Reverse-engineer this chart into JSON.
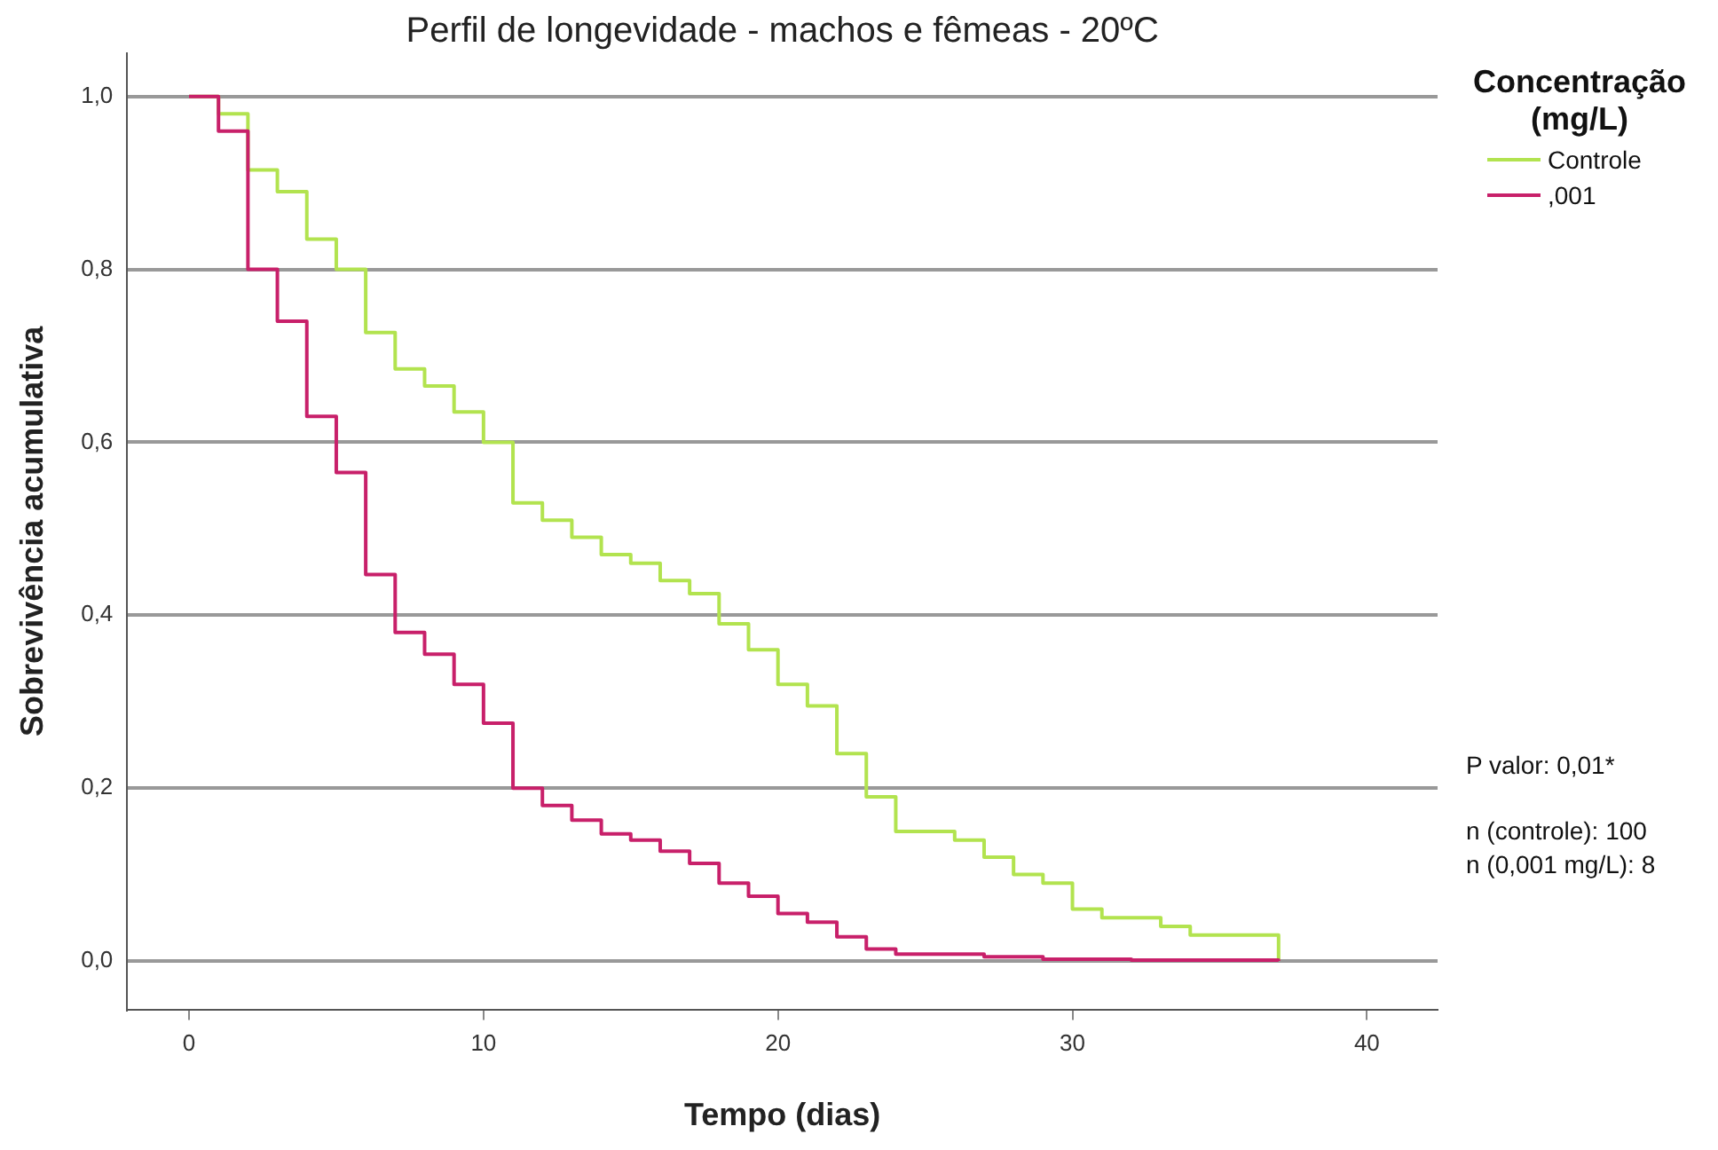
{
  "chart_data": {
    "type": "step",
    "title": "Perfil de longevidade - machos e fêmeas - 20ºC",
    "xlabel": "Tempo (dias)",
    "ylabel": "Sobrevivência acumulativa",
    "legend_title": "Concentração (mg/L)",
    "legend": "top right",
    "xlim": [
      -2.1,
      42.4
    ],
    "xticks": [
      0,
      10,
      20,
      30,
      40
    ],
    "ylim": [
      -0.056,
      1.05
    ],
    "yticks": [
      {
        "value": 0,
        "label": "0,0"
      },
      {
        "value": 0.2,
        "label": "0,2"
      },
      {
        "value": 0.4,
        "label": "0,4"
      },
      {
        "value": 0.6,
        "label": "0,6"
      },
      {
        "value": 0.8,
        "label": "0,8"
      },
      {
        "value": 1,
        "label": "1,0"
      }
    ],
    "grid": "y",
    "series": [
      {
        "name": "Controle",
        "color": "#b2e34f",
        "x": [
          0,
          1,
          2,
          3,
          4,
          5,
          6,
          7,
          8,
          9,
          10,
          11,
          12,
          13,
          14,
          15,
          16,
          17,
          18,
          19,
          20,
          21,
          22,
          23,
          24,
          26,
          27,
          28,
          29,
          30,
          31,
          33,
          34,
          37
        ],
        "values": [
          1,
          0.98,
          0.915,
          0.89,
          0.835,
          0.8,
          0.727,
          0.685,
          0.665,
          0.635,
          0.6,
          0.53,
          0.51,
          0.49,
          0.47,
          0.46,
          0.44,
          0.425,
          0.39,
          0.36,
          0.32,
          0.295,
          0.24,
          0.19,
          0.15,
          0.14,
          0.12,
          0.1,
          0.09,
          0.06,
          0.05,
          0.04,
          0.03,
          0
        ]
      },
      {
        "name": ",001",
        "color": "#c8206a",
        "x": [
          0,
          1,
          2,
          3,
          4,
          5,
          6,
          7,
          8,
          9,
          10,
          11,
          12,
          13,
          14,
          15,
          16,
          17,
          18,
          19,
          20,
          21,
          22,
          23,
          24,
          27,
          29,
          32,
          37
        ],
        "values": [
          1,
          0.96,
          0.8,
          0.74,
          0.63,
          0.565,
          0.447,
          0.38,
          0.355,
          0.32,
          0.275,
          0.2,
          0.18,
          0.163,
          0.147,
          0.14,
          0.127,
          0.113,
          0.09,
          0.075,
          0.055,
          0.045,
          0.028,
          0.014,
          0.008,
          0.005,
          0.002,
          0.001,
          0
        ]
      }
    ],
    "annotations": [
      "P valor: 0,01*",
      "n (controle): 100",
      "n (0,001 mg/L): 8"
    ]
  }
}
